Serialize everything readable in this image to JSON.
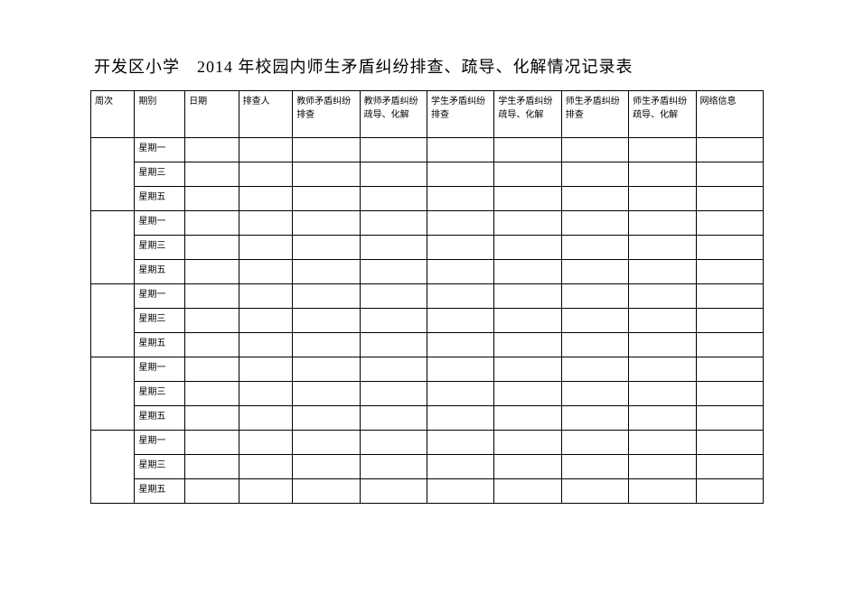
{
  "title": "开发区小学　2014 年校园内师生矛盾纠纷排查、疏导、化解情况记录表",
  "table": {
    "columns": [
      "周次",
      "期别",
      "日期",
      "排查人",
      "教师矛盾纠纷排查",
      "教师矛盾纠纷疏导、化解",
      "学生矛盾纠纷排查",
      "学生矛盾纠纷疏导、化解",
      "师生矛盾纠纷排查",
      "师生矛盾纠纷疏导、化解",
      "网络信息"
    ],
    "column_widths_pct": [
      6.5,
      7.5,
      8,
      8,
      10,
      10,
      10,
      10,
      10,
      10,
      10
    ],
    "groups": [
      {
        "rows": [
          "星期一",
          "星期三",
          "星期五"
        ]
      },
      {
        "rows": [
          "星期一",
          "星期三",
          "星期五"
        ]
      },
      {
        "rows": [
          "星期一",
          "星期三",
          "星期五"
        ]
      },
      {
        "rows": [
          "星期一",
          "星期三",
          "星期五"
        ]
      },
      {
        "rows": [
          "星期一",
          "星期三",
          "星期五"
        ]
      }
    ],
    "border_color": "#000000",
    "background_color": "#ffffff",
    "header_fontsize": 10,
    "cell_fontsize": 10,
    "title_fontsize": 18
  }
}
